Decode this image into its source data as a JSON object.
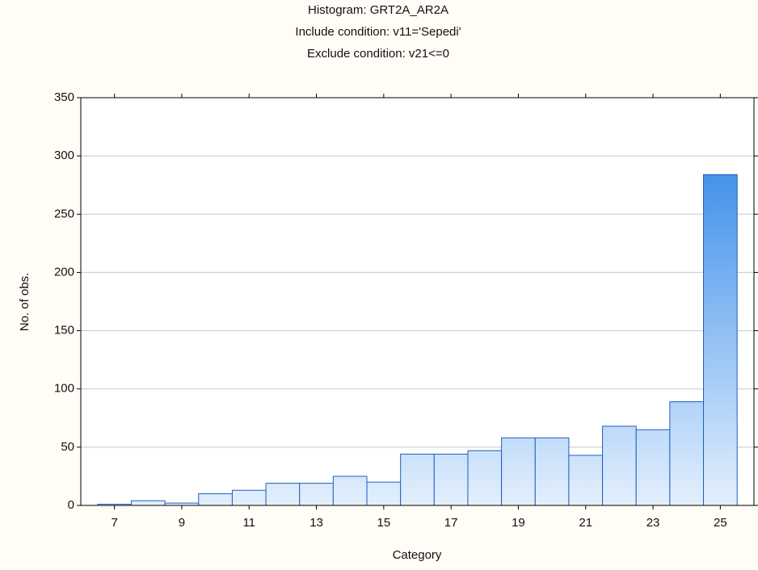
{
  "chart_data": {
    "type": "histogram",
    "title": "Histogram: GRT2A_AR2A",
    "subtitle": "Include condition: v11='Sepedi'",
    "subtitle2": "Exclude condition: v21<=0",
    "xlabel": "Category",
    "ylabel": "No. of obs.",
    "bins": [
      6.5,
      7.5,
      8.5,
      9.5,
      10.5,
      11.5,
      12.5,
      13.5,
      14.5,
      15.5,
      16.5,
      17.5,
      18.5,
      19.5,
      20.5,
      21.5,
      22.5,
      23.5,
      24.5,
      25.5
    ],
    "values": [
      1,
      4,
      2,
      10,
      13,
      19,
      19,
      25,
      20,
      44,
      44,
      47,
      58,
      58,
      43,
      68,
      65,
      89,
      284
    ],
    "color": "#e3f0fd",
    "color_top": "#1f7de6",
    "edge_color": "#1f5fbf",
    "xlim": [
      6,
      26
    ],
    "xticks": [
      7,
      9,
      11,
      13,
      15,
      17,
      19,
      21,
      23,
      25
    ],
    "ylim": [
      0,
      350
    ],
    "yticks": [
      0,
      50,
      100,
      150,
      200,
      250,
      300,
      350
    ],
    "grid": true
  }
}
